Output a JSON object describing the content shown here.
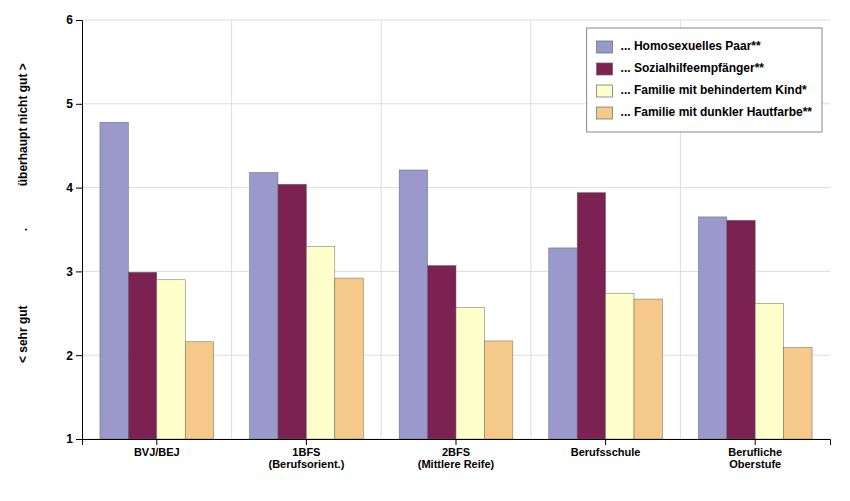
{
  "chart_data": {
    "type": "bar",
    "categories": [
      "BVJ/BEJ",
      "1BFS\n(Berufsorient.)",
      "2BFS\n(Mittlere Reife)",
      "Berufsschule",
      "Berufliche\nOberstufe"
    ],
    "series": [
      {
        "name": "... Homosexuelles Paar**",
        "color": "#9999cc",
        "values": [
          4.78,
          4.18,
          4.21,
          3.28,
          3.65
        ]
      },
      {
        "name": "... Sozialhilfeempfänger**",
        "color": "#7b2252",
        "values": [
          2.99,
          4.04,
          3.07,
          3.94,
          3.61
        ]
      },
      {
        "name": "... Familie mit behindertem Kind*",
        "color": "#ffffcc",
        "values": [
          2.9,
          3.3,
          2.57,
          2.74,
          2.62
        ]
      },
      {
        "name": "... Familie mit dunkler Hautfarbe**",
        "color": "#f5c98a",
        "values": [
          2.16,
          2.92,
          2.17,
          2.67,
          2.09
        ]
      }
    ],
    "ylabel": [
      "überhaupt nicht gut >",
      ".",
      "< sehr gut"
    ],
    "ylim": [
      1,
      6
    ],
    "yticks": [
      1,
      2,
      3,
      4,
      5,
      6
    ],
    "grid": true,
    "legend": "upper right"
  }
}
